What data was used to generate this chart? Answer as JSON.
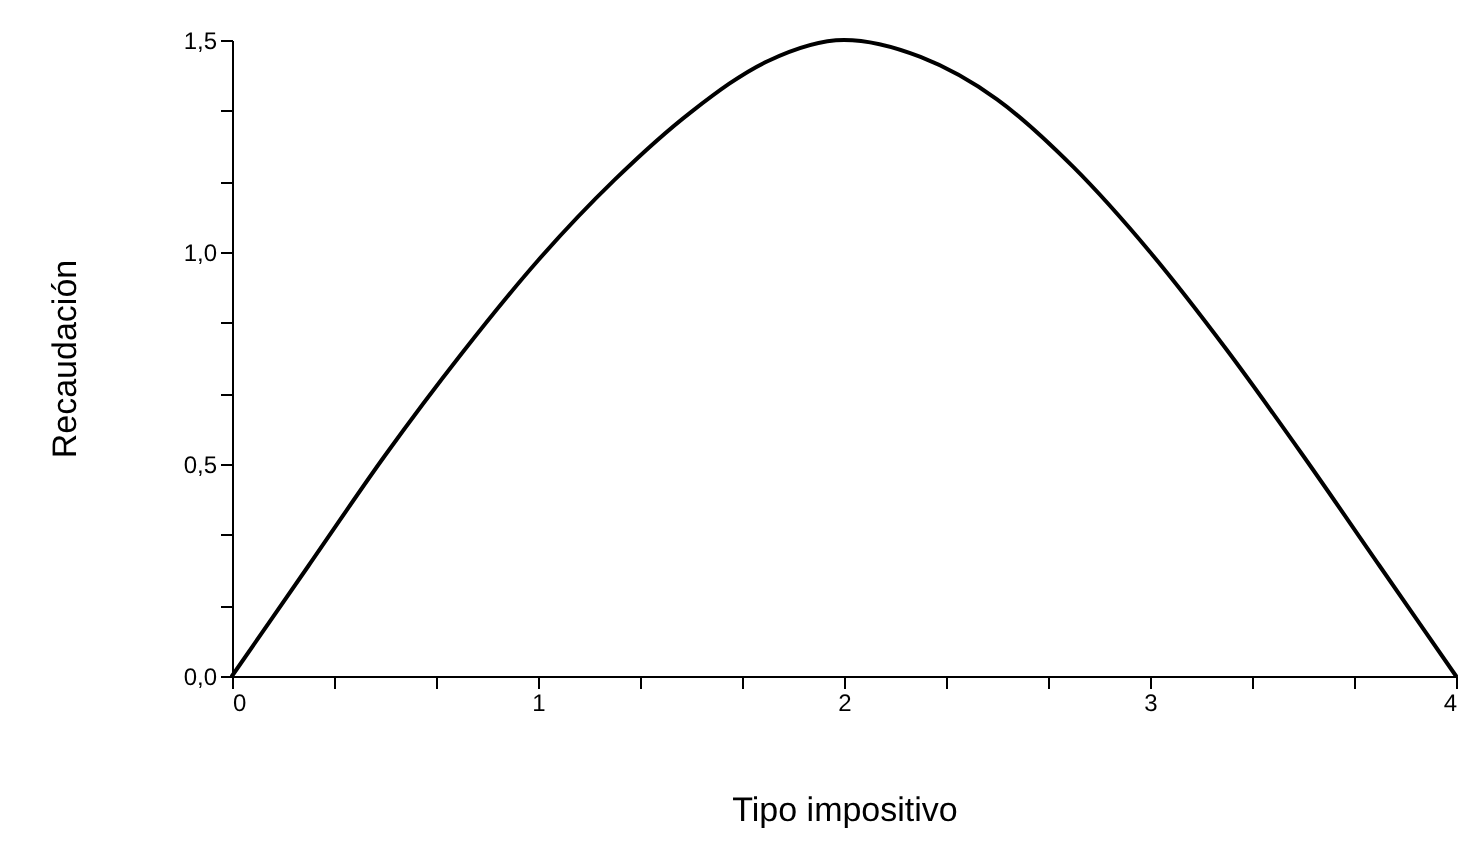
{
  "chart_data": {
    "type": "line",
    "xlabel": "Tipo impositivo",
    "ylabel": "Recaudación",
    "x": [
      0,
      0.25,
      0.5,
      0.75,
      1,
      1.25,
      1.5,
      1.75,
      2,
      2.25,
      2.5,
      2.75,
      3,
      3.25,
      3.5,
      3.75,
      4
    ],
    "series": [
      {
        "color": "#000000",
        "values": [
          0,
          0.26,
          0.52,
          0.76,
          0.98,
          1.17,
          1.33,
          1.45,
          1.5,
          1.46,
          1.36,
          1.2,
          1.0,
          0.77,
          0.52,
          0.26,
          0
        ]
      }
    ],
    "xlim": [
      0,
      4
    ],
    "ylim": [
      0,
      1.5
    ],
    "xticks": [
      0,
      {
        "value": 0.333,
        "label": null
      },
      {
        "value": 0.667,
        "label": null
      },
      1,
      {
        "value": 1.333,
        "label": null
      },
      {
        "value": 1.667,
        "label": null
      },
      2,
      {
        "value": 2.333,
        "label": null
      },
      {
        "value": 2.667,
        "label": null
      },
      3,
      {
        "value": 3.333,
        "label": null
      },
      {
        "value": 3.667,
        "label": null
      },
      4
    ],
    "yticks": [
      {
        "value": 0,
        "label": "0,0"
      },
      {
        "value": 0.167,
        "label": null
      },
      {
        "value": 0.333,
        "label": null
      },
      {
        "value": 0.5,
        "label": "0,5"
      },
      {
        "value": 0.667,
        "label": null
      },
      {
        "value": 0.833,
        "label": null
      },
      {
        "value": 1,
        "label": "1,0"
      },
      {
        "value": 1.167,
        "label": null
      },
      {
        "value": 1.333,
        "label": null
      },
      {
        "value": 1.5,
        "label": "1,5"
      }
    ],
    "grid": false,
    "marker": "none",
    "line_style": "solid"
  }
}
